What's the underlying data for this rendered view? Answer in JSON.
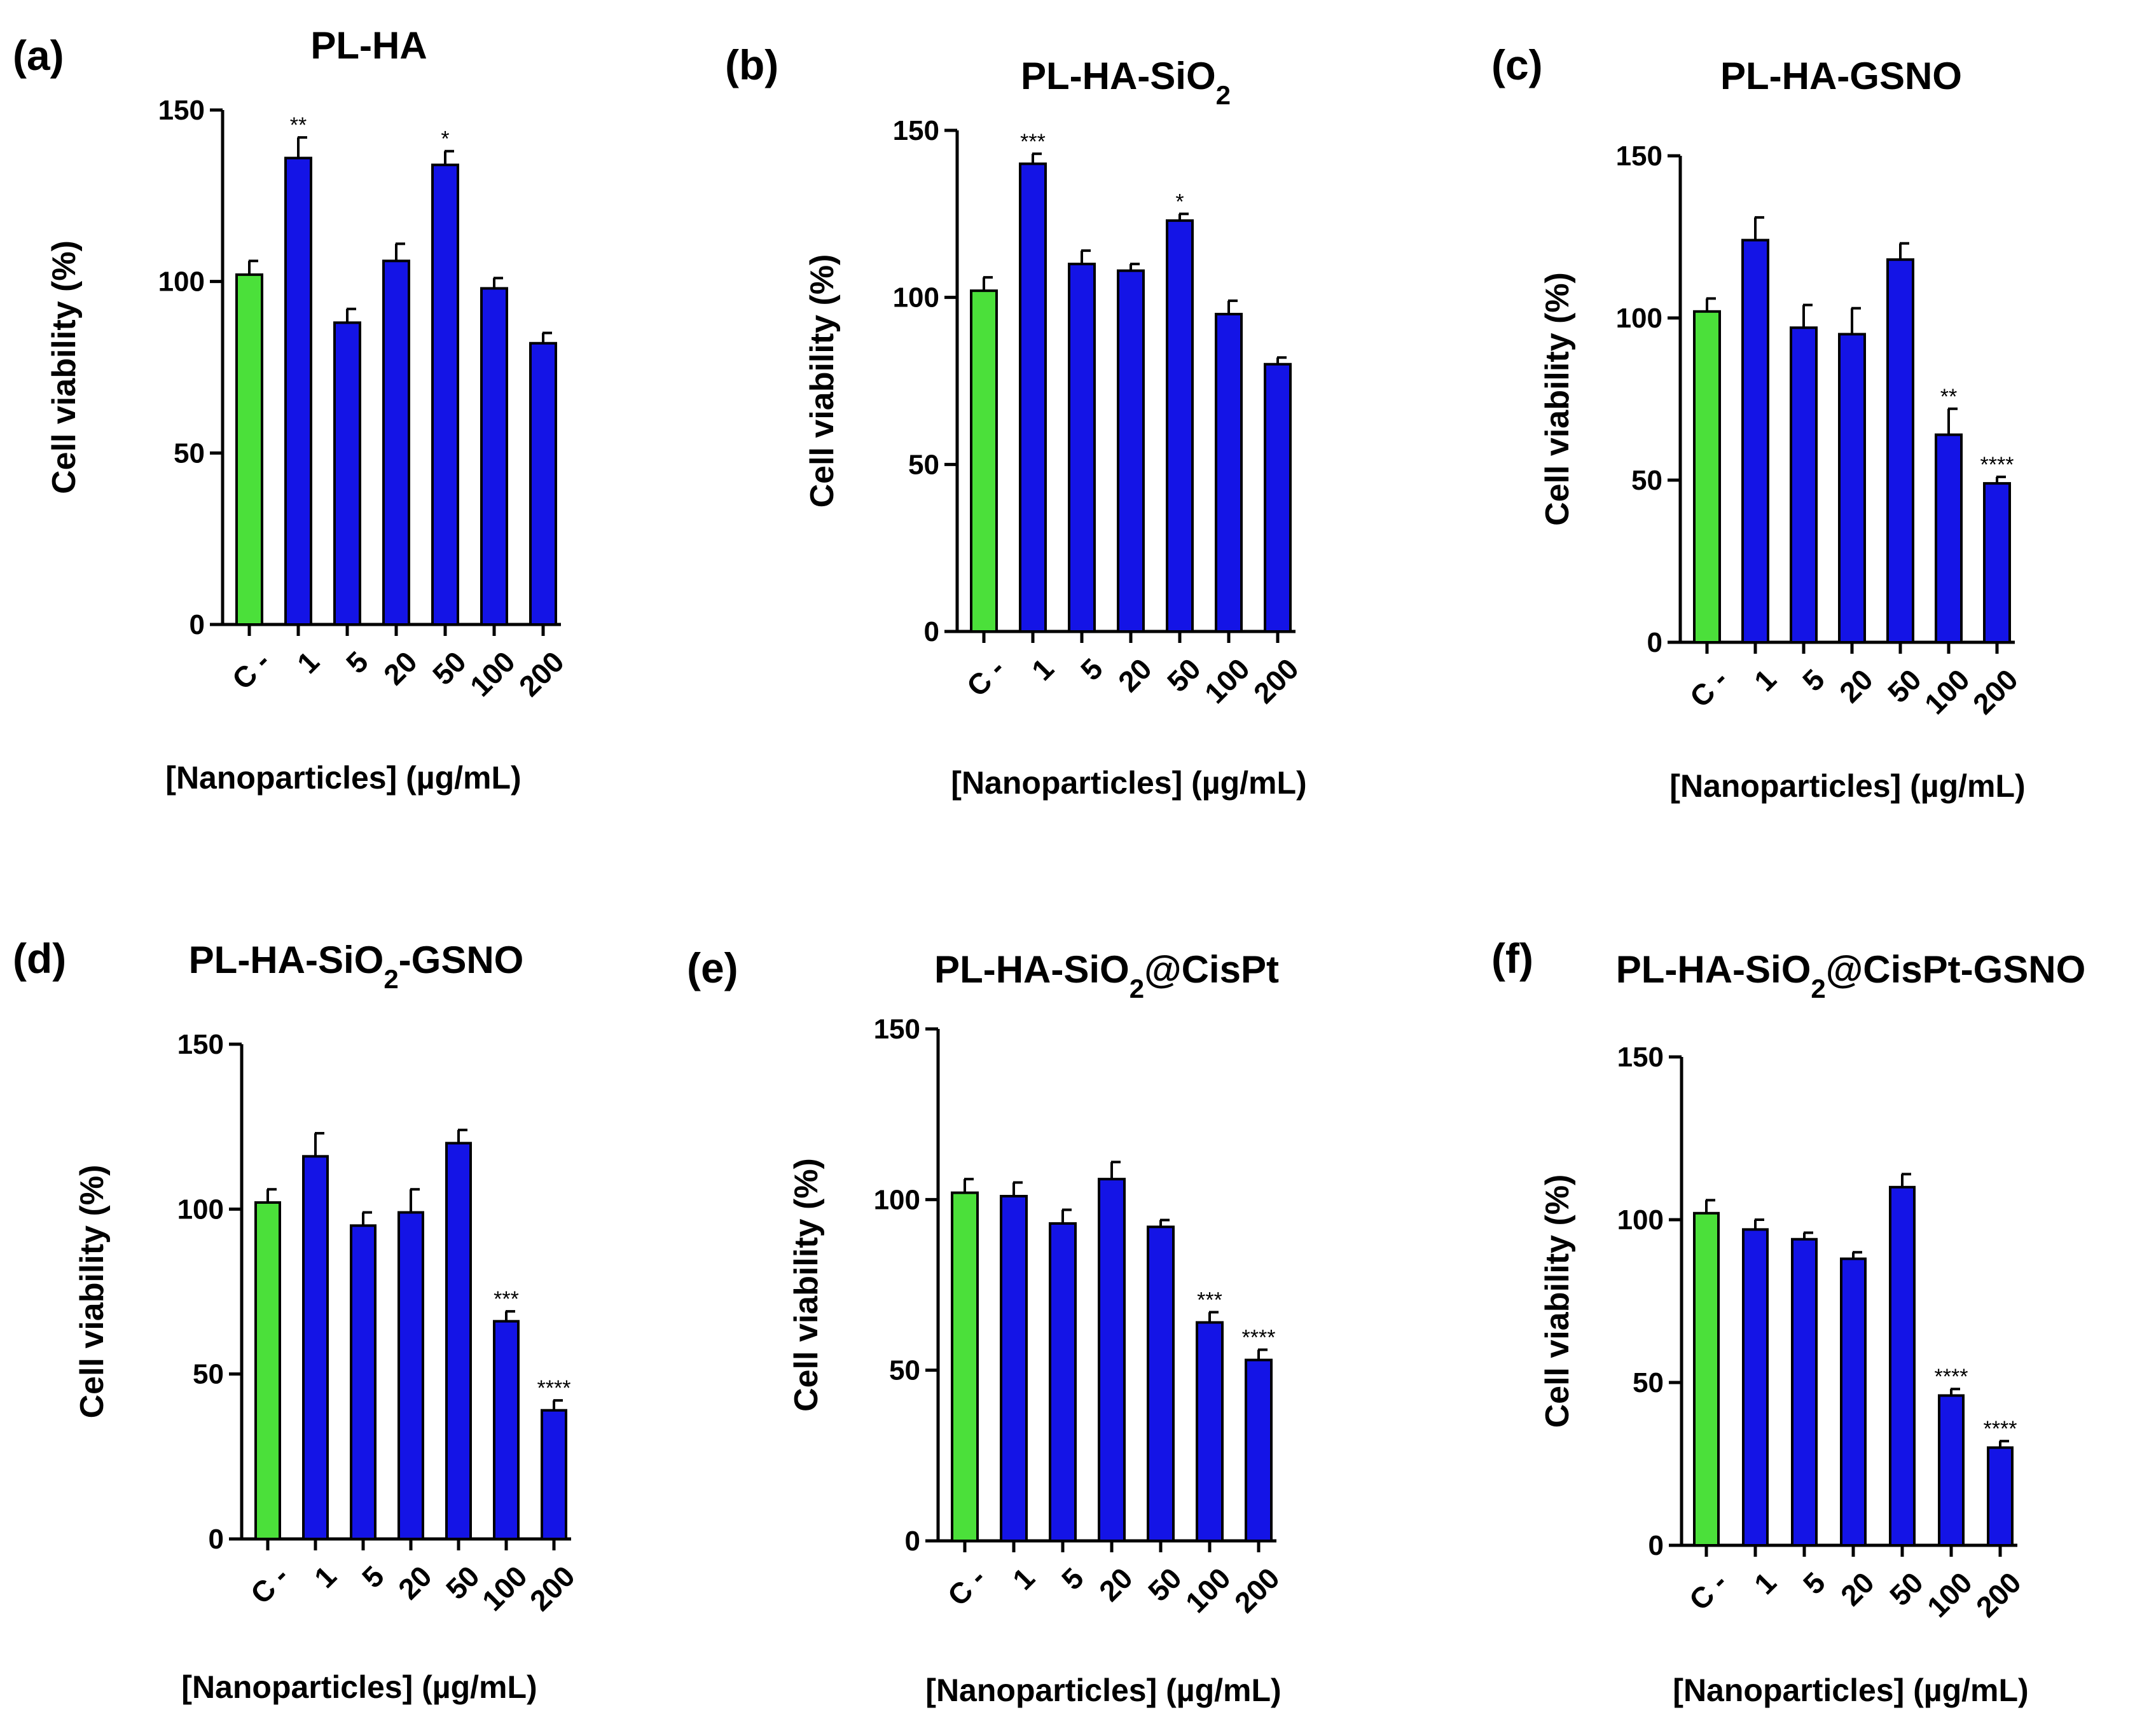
{
  "style": {
    "control_color": "#4be03a",
    "sample_color": "#1414e6",
    "edge_color": "#000000",
    "text_color": "#000000"
  },
  "chart_data": [
    {
      "type": "bar",
      "panel_label": "(a)",
      "title": "PL-HA",
      "title_sub": "",
      "title_after": "",
      "xlabel": "[Nanoparticles] (µg/mL)",
      "ylabel": "Cell viability (%)",
      "ylim": [
        0,
        150
      ],
      "yticks": [
        "0",
        "50",
        "100",
        "150"
      ],
      "categories": [
        "C -",
        "1",
        "5",
        "20",
        "50",
        "100",
        "200"
      ],
      "values": [
        102,
        136,
        88,
        106,
        134,
        98,
        82
      ],
      "errors": [
        4,
        6,
        4,
        5,
        4,
        3,
        3
      ],
      "significance": [
        "",
        "**",
        "",
        "",
        "*",
        "",
        ""
      ],
      "legend": "none",
      "grid": false
    },
    {
      "type": "bar",
      "panel_label": "(b)",
      "title": "PL-HA-SiO",
      "title_sub": "2",
      "title_after": "",
      "xlabel": "[Nanoparticles] (µg/mL)",
      "ylabel": "Cell viability (%)",
      "ylim": [
        0,
        150
      ],
      "yticks": [
        "0",
        "50",
        "100",
        "150"
      ],
      "categories": [
        "C -",
        "1",
        "5",
        "20",
        "50",
        "100",
        "200"
      ],
      "values": [
        102,
        140,
        110,
        108,
        123,
        95,
        80
      ],
      "errors": [
        4,
        3,
        4,
        2,
        2,
        4,
        2
      ],
      "significance": [
        "",
        "***",
        "",
        "",
        "*",
        "",
        ""
      ],
      "legend": "none",
      "grid": false
    },
    {
      "type": "bar",
      "panel_label": "(c)",
      "title": "PL-HA-GSNO",
      "title_sub": "",
      "title_after": "",
      "xlabel": "[Nanoparticles] (µg/mL)",
      "ylabel": "Cell viability (%)",
      "ylim": [
        0,
        150
      ],
      "yticks": [
        "0",
        "50",
        "100",
        "150"
      ],
      "categories": [
        "C -",
        "1",
        "5",
        "20",
        "50",
        "100",
        "200"
      ],
      "values": [
        102,
        124,
        97,
        95,
        118,
        64,
        49
      ],
      "errors": [
        4,
        7,
        7,
        8,
        5,
        8,
        2
      ],
      "significance": [
        "",
        "",
        "",
        "",
        "",
        "**",
        "****"
      ],
      "legend": "none",
      "grid": false
    },
    {
      "type": "bar",
      "panel_label": "(d)",
      "title": "PL-HA-SiO",
      "title_sub": "2",
      "title_after": "-GSNO",
      "xlabel": "[Nanoparticles] (µg/mL)",
      "ylabel": "Cell viability (%)",
      "ylim": [
        0,
        150
      ],
      "yticks": [
        "0",
        "50",
        "100",
        "150"
      ],
      "categories": [
        "C -",
        "1",
        "5",
        "20",
        "50",
        "100",
        "200"
      ],
      "values": [
        102,
        116,
        95,
        99,
        120,
        66,
        39
      ],
      "errors": [
        4,
        7,
        4,
        7,
        4,
        3,
        3
      ],
      "significance": [
        "",
        "",
        "",
        "",
        "",
        "***",
        "****"
      ],
      "legend": "none",
      "grid": false
    },
    {
      "type": "bar",
      "panel_label": "(e)",
      "title": "PL-HA-SiO",
      "title_sub": "2",
      "title_after": "@CisPt",
      "xlabel": "[Nanoparticles] (µg/mL)",
      "ylabel": "Cell viability (%)",
      "ylim": [
        0,
        150
      ],
      "yticks": [
        "0",
        "50",
        "100",
        "150"
      ],
      "categories": [
        "C -",
        "1",
        "5",
        "20",
        "50",
        "100",
        "200"
      ],
      "values": [
        102,
        101,
        93,
        106,
        92,
        64,
        53
      ],
      "errors": [
        4,
        4,
        4,
        5,
        2,
        3,
        3
      ],
      "significance": [
        "",
        "",
        "",
        "",
        "",
        "***",
        "****"
      ],
      "legend": "none",
      "grid": false
    },
    {
      "type": "bar",
      "panel_label": "(f)",
      "title": "PL-HA-SiO",
      "title_sub": "2",
      "title_after": "@CisPt-GSNO",
      "xlabel": "[Nanoparticles] (µg/mL)",
      "ylabel": "Cell viability (%)",
      "ylim": [
        0,
        150
      ],
      "yticks": [
        "0",
        "50",
        "100",
        "150"
      ],
      "categories": [
        "C -",
        "1",
        "5",
        "20",
        "50",
        "100",
        "200"
      ],
      "values": [
        102,
        97,
        94,
        88,
        110,
        46,
        30
      ],
      "errors": [
        4,
        3,
        2,
        2,
        4,
        2,
        2
      ],
      "significance": [
        "",
        "",
        "",
        "",
        "",
        "****",
        "****"
      ],
      "legend": "none",
      "grid": false
    }
  ]
}
